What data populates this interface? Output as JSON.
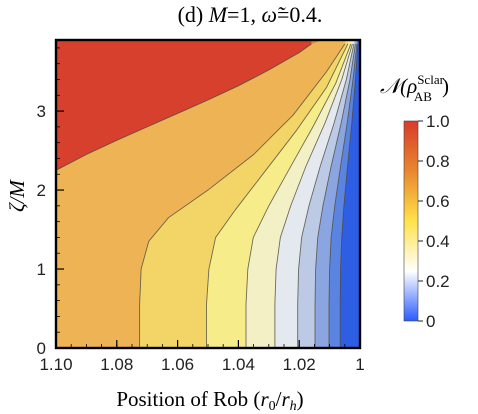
{
  "chart_data": {
    "type": "heatmap",
    "title_prefix": "(d) ",
    "title_m": "M",
    "title_mid": "=1, ",
    "title_omega": "ω̃",
    "title_end": "=0.4.",
    "xlabel_text": "Position of Rob (",
    "xlabel_r0": "r",
    "xlabel_r0_sub": "0",
    "xlabel_slash": "/",
    "xlabel_rh": "r",
    "xlabel_rh_sub": "h",
    "xlabel_close": ")",
    "ylabel_zeta": "ζ",
    "ylabel_rest": "/M",
    "colorbar_label_N": "𝒩",
    "colorbar_label_rho": "(ρ",
    "colorbar_label_sup": "Sclar",
    "colorbar_label_sub": "AB",
    "colorbar_label_close": ")",
    "x_range": [
      1.1,
      1.0
    ],
    "x_reversed": true,
    "y_range": [
      0,
      3.9
    ],
    "x_ticks": [
      {
        "value": 1.1,
        "label": "1.10"
      },
      {
        "value": 1.08,
        "label": "1.08"
      },
      {
        "value": 1.06,
        "label": "1.06"
      },
      {
        "value": 1.04,
        "label": "1.04"
      },
      {
        "value": 1.02,
        "label": "1.02"
      },
      {
        "value": 1.0,
        "label": "1"
      }
    ],
    "y_ticks": [
      {
        "value": 0,
        "label": "0"
      },
      {
        "value": 1,
        "label": "1"
      },
      {
        "value": 2,
        "label": "2"
      },
      {
        "value": 3,
        "label": "3"
      }
    ],
    "colorbar_ticks": [
      {
        "value": 1.0,
        "label": "1.0"
      },
      {
        "value": 0.8,
        "label": "0.8"
      },
      {
        "value": 0.6,
        "label": "0.6"
      },
      {
        "value": 0.4,
        "label": "0.4"
      },
      {
        "value": 0.2,
        "label": "0.2"
      },
      {
        "value": 0,
        "label": "0"
      }
    ],
    "colorbar_range": [
      0,
      1.0
    ],
    "contour_levels": [
      0.9,
      0.8,
      0.7,
      0.6,
      0.5,
      0.4,
      0.3,
      0.2,
      0.1
    ],
    "band_colors": [
      "#d6402d",
      "#e0823b",
      "#eeb355",
      "#f3d466",
      "#f6ec8a",
      "#f2f0c4",
      "#e4e8ef",
      "#bccae6",
      "#8aa5df",
      "#5b84e0",
      "#2d5ee3"
    ],
    "contour_color": "#4e4a3e",
    "colormap": [
      "#2a5bff",
      "#ffffff",
      "#ffe24a",
      "#e8872f",
      "#d93b2b"
    ],
    "boundaries": [
      {
        "level": 0.9,
        "points": [
          [
            1.1,
            2.25
          ],
          [
            1.09,
            2.45
          ],
          [
            1.08,
            2.63
          ],
          [
            1.07,
            2.8
          ],
          [
            1.06,
            2.97
          ],
          [
            1.05,
            3.14
          ],
          [
            1.04,
            3.32
          ],
          [
            1.03,
            3.52
          ],
          [
            1.02,
            3.74
          ],
          [
            1.016,
            3.85
          ]
        ]
      },
      {
        "level": 0.8,
        "points": [
          [
            1.0725,
            0.0
          ],
          [
            1.0725,
            0.55
          ],
          [
            1.072,
            1.0
          ],
          [
            1.0695,
            1.35
          ],
          [
            1.063,
            1.65
          ],
          [
            1.05,
            2.0
          ],
          [
            1.035,
            2.45
          ],
          [
            1.022,
            2.95
          ],
          [
            1.011,
            3.5
          ],
          [
            1.005,
            3.85
          ]
        ]
      },
      {
        "level": 0.7,
        "points": [
          [
            1.0505,
            0.0
          ],
          [
            1.0505,
            0.55
          ],
          [
            1.0497,
            1.0
          ],
          [
            1.0475,
            1.4
          ],
          [
            1.041,
            1.75
          ],
          [
            1.031,
            2.25
          ],
          [
            1.021,
            2.75
          ],
          [
            1.011,
            3.3
          ],
          [
            1.004,
            3.85
          ]
        ]
      },
      {
        "level": 0.6,
        "points": [
          [
            1.0375,
            0.0
          ],
          [
            1.0375,
            0.55
          ],
          [
            1.0369,
            1.0
          ],
          [
            1.0351,
            1.4
          ],
          [
            1.03,
            1.8
          ],
          [
            1.0235,
            2.25
          ],
          [
            1.0155,
            2.8
          ],
          [
            1.008,
            3.35
          ],
          [
            1.003,
            3.85
          ]
        ]
      },
      {
        "level": 0.5,
        "points": [
          [
            1.028,
            0.0
          ],
          [
            1.028,
            0.55
          ],
          [
            1.0276,
            1.0
          ],
          [
            1.0262,
            1.4
          ],
          [
            1.0228,
            1.8
          ],
          [
            1.0178,
            2.3
          ],
          [
            1.0115,
            2.85
          ],
          [
            1.006,
            3.4
          ],
          [
            1.0025,
            3.85
          ]
        ]
      },
      {
        "level": 0.4,
        "points": [
          [
            1.0205,
            0.0
          ],
          [
            1.0205,
            0.55
          ],
          [
            1.0202,
            1.0
          ],
          [
            1.0192,
            1.4
          ],
          [
            1.0168,
            1.8
          ],
          [
            1.0131,
            2.3
          ],
          [
            1.0085,
            2.85
          ],
          [
            1.0045,
            3.4
          ],
          [
            1.002,
            3.85
          ]
        ]
      },
      {
        "level": 0.3,
        "points": [
          [
            1.0148,
            0.0
          ],
          [
            1.0148,
            0.55
          ],
          [
            1.0146,
            1.0
          ],
          [
            1.0139,
            1.4
          ],
          [
            1.0122,
            1.8
          ],
          [
            1.0095,
            2.3
          ],
          [
            1.0062,
            2.85
          ],
          [
            1.0033,
            3.4
          ],
          [
            1.0015,
            3.85
          ]
        ]
      },
      {
        "level": 0.2,
        "points": [
          [
            1.0102,
            0.0
          ],
          [
            1.0102,
            0.55
          ],
          [
            1.01,
            1.0
          ],
          [
            1.0095,
            1.4
          ],
          [
            1.0083,
            1.8
          ],
          [
            1.0064,
            2.3
          ],
          [
            1.0042,
            2.85
          ],
          [
            1.0023,
            3.4
          ],
          [
            1.001,
            3.85
          ]
        ]
      },
      {
        "level": 0.1,
        "points": [
          [
            1.0065,
            0.0
          ],
          [
            1.0065,
            0.55
          ],
          [
            1.0064,
            1.0
          ],
          [
            1.006,
            1.4
          ],
          [
            1.0053,
            1.8
          ],
          [
            1.0041,
            2.3
          ],
          [
            1.0027,
            2.85
          ],
          [
            1.0015,
            3.4
          ],
          [
            1.0007,
            3.85
          ]
        ]
      }
    ]
  }
}
